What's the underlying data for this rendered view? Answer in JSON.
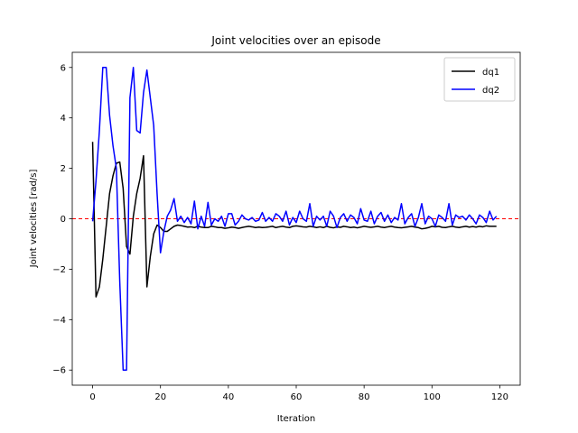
{
  "chart_data": {
    "type": "line",
    "title": "Joint velocities over an episode",
    "xlabel": "Iteration",
    "ylabel": "Joint velocities [rad/s]",
    "xlim": [
      -6,
      126
    ],
    "ylim": [
      -6.6,
      6.6
    ],
    "xticks": [
      0,
      20,
      40,
      60,
      80,
      100,
      120
    ],
    "yticks": [
      -6,
      -4,
      -2,
      0,
      2,
      4,
      6
    ],
    "grid": false,
    "legend_position": "top-right",
    "reference_line": {
      "y": 0,
      "color": "#ff0000",
      "style": "dashed"
    },
    "series": [
      {
        "name": "dq1",
        "color": "#000000",
        "x": [
          0,
          1,
          2,
          3,
          4,
          5,
          6,
          7,
          8,
          9,
          10,
          11,
          12,
          13,
          14,
          15,
          16,
          17,
          18,
          19,
          20,
          21,
          22,
          23,
          24,
          25,
          26,
          27,
          28,
          29,
          30,
          31,
          32,
          33,
          34,
          35,
          36,
          37,
          38,
          39,
          40,
          41,
          42,
          43,
          44,
          45,
          46,
          47,
          48,
          49,
          50,
          51,
          52,
          53,
          54,
          55,
          56,
          57,
          58,
          59,
          60,
          61,
          62,
          63,
          64,
          65,
          66,
          67,
          68,
          69,
          70,
          71,
          72,
          73,
          74,
          75,
          76,
          77,
          78,
          79,
          80,
          81,
          82,
          83,
          84,
          85,
          86,
          87,
          88,
          89,
          90,
          91,
          92,
          93,
          94,
          95,
          96,
          97,
          98,
          99,
          100,
          101,
          102,
          103,
          104,
          105,
          106,
          107,
          108,
          109,
          110,
          111,
          112,
          113,
          114,
          115,
          116,
          117,
          118,
          119
        ],
        "values": [
          3.05,
          -3.1,
          -2.7,
          -1.6,
          -0.3,
          1.0,
          1.7,
          2.2,
          2.25,
          1.2,
          -1.1,
          -1.4,
          0.1,
          1.0,
          1.6,
          2.5,
          -2.7,
          -1.5,
          -0.6,
          -0.25,
          -0.35,
          -0.5,
          -0.5,
          -0.4,
          -0.3,
          -0.25,
          -0.27,
          -0.3,
          -0.33,
          -0.32,
          -0.35,
          -0.3,
          -0.33,
          -0.35,
          -0.35,
          -0.3,
          -0.32,
          -0.35,
          -0.35,
          -0.38,
          -0.36,
          -0.33,
          -0.35,
          -0.38,
          -0.35,
          -0.32,
          -0.3,
          -0.32,
          -0.35,
          -0.33,
          -0.35,
          -0.34,
          -0.32,
          -0.3,
          -0.35,
          -0.32,
          -0.3,
          -0.33,
          -0.35,
          -0.3,
          -0.28,
          -0.3,
          -0.32,
          -0.33,
          -0.3,
          -0.32,
          -0.35,
          -0.32,
          -0.35,
          -0.3,
          -0.34,
          -0.36,
          -0.32,
          -0.34,
          -0.3,
          -0.32,
          -0.35,
          -0.33,
          -0.36,
          -0.33,
          -0.3,
          -0.32,
          -0.34,
          -0.32,
          -0.3,
          -0.33,
          -0.35,
          -0.32,
          -0.3,
          -0.33,
          -0.35,
          -0.36,
          -0.34,
          -0.32,
          -0.3,
          -0.33,
          -0.35,
          -0.4,
          -0.38,
          -0.35,
          -0.3,
          -0.32,
          -0.3,
          -0.34,
          -0.35,
          -0.32,
          -0.3,
          -0.33,
          -0.35,
          -0.32,
          -0.3,
          -0.33,
          -0.31,
          -0.33,
          -0.3,
          -0.32,
          -0.28,
          -0.3,
          -0.3,
          -0.3
        ]
      },
      {
        "name": "dq2",
        "color": "#0000ff",
        "x": [
          0,
          1,
          2,
          3,
          4,
          5,
          6,
          7,
          8,
          9,
          10,
          11,
          12,
          13,
          14,
          15,
          16,
          17,
          18,
          19,
          20,
          21,
          22,
          23,
          24,
          25,
          26,
          27,
          28,
          29,
          30,
          31,
          32,
          33,
          34,
          35,
          36,
          37,
          38,
          39,
          40,
          41,
          42,
          43,
          44,
          45,
          46,
          47,
          48,
          49,
          50,
          51,
          52,
          53,
          54,
          55,
          56,
          57,
          58,
          59,
          60,
          61,
          62,
          63,
          64,
          65,
          66,
          67,
          68,
          69,
          70,
          71,
          72,
          73,
          74,
          75,
          76,
          77,
          78,
          79,
          80,
          81,
          82,
          83,
          84,
          85,
          86,
          87,
          88,
          89,
          90,
          91,
          92,
          93,
          94,
          95,
          96,
          97,
          98,
          99,
          100,
          101,
          102,
          103,
          104,
          105,
          106,
          107,
          108,
          109,
          110,
          111,
          112,
          113,
          114,
          115,
          116,
          117,
          118,
          119
        ],
        "values": [
          -0.1,
          1.5,
          3.5,
          6.0,
          6.0,
          4.1,
          2.9,
          2.0,
          -2.5,
          -6.0,
          -6.0,
          4.8,
          6.0,
          3.5,
          3.4,
          5.0,
          5.9,
          4.8,
          3.7,
          1.0,
          -1.35,
          -0.5,
          0.1,
          0.35,
          0.8,
          -0.1,
          0.1,
          -0.15,
          0.05,
          -0.2,
          0.7,
          -0.4,
          0.1,
          -0.3,
          0.65,
          -0.25,
          0.0,
          -0.1,
          0.1,
          -0.3,
          0.2,
          0.2,
          -0.25,
          -0.1,
          0.15,
          0.0,
          -0.05,
          0.05,
          -0.1,
          -0.05,
          0.25,
          -0.1,
          0.05,
          -0.1,
          0.2,
          0.1,
          -0.1,
          0.3,
          -0.25,
          0.05,
          -0.15,
          0.3,
          0.0,
          -0.1,
          0.6,
          -0.3,
          0.1,
          -0.05,
          0.1,
          -0.3,
          0.3,
          0.1,
          -0.35,
          0.05,
          0.2,
          -0.1,
          0.15,
          0.05,
          -0.2,
          0.4,
          -0.05,
          -0.1,
          0.3,
          -0.2,
          0.1,
          0.25,
          -0.1,
          0.15,
          -0.15,
          0.05,
          -0.05,
          0.6,
          -0.2,
          0.05,
          0.2,
          -0.3,
          0.05,
          0.6,
          -0.2,
          0.1,
          0.0,
          -0.3,
          0.15,
          0.05,
          -0.1,
          0.6,
          -0.25,
          0.15,
          0.05,
          0.1,
          -0.05,
          0.15,
          0.0,
          -0.2,
          0.15,
          0.05,
          -0.15,
          0.3,
          -0.05,
          0.1
        ]
      }
    ]
  }
}
